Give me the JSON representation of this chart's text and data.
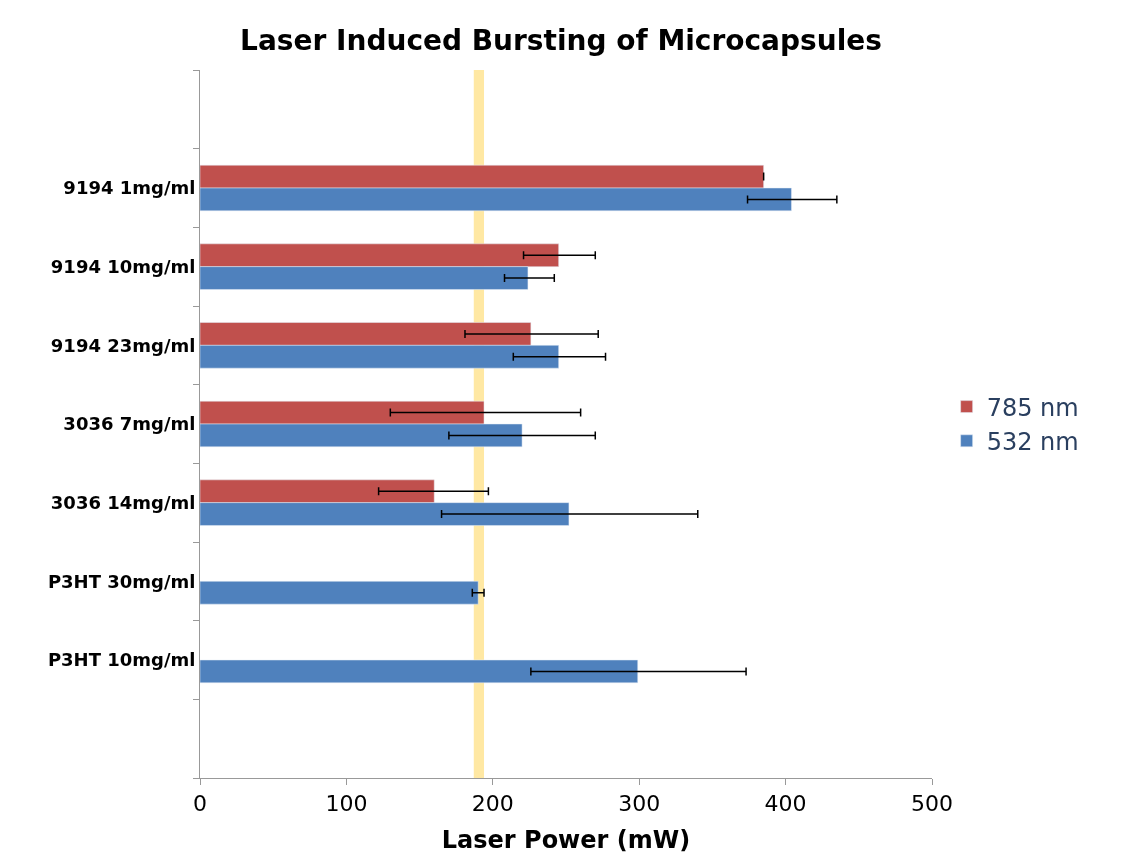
{
  "chart_data": {
    "type": "bar",
    "orientation": "horizontal",
    "title": "Laser Induced Bursting of Microcapsules",
    "xlabel": "Laser Power (mW)",
    "categories": [
      null,
      "9194 1mg/ml",
      "9194 10mg/ml",
      "9194 23mg/ml",
      "3036 7mg/ml",
      "3036 14mg/ml",
      "P3HT 30mg/ml",
      "P3HT 10mg/ml",
      null
    ],
    "series": [
      {
        "name": "785 nm",
        "color": "#c0504d",
        "values": [
          null,
          385,
          245,
          226,
          194,
          160,
          null,
          null,
          null
        ],
        "errors": [
          null,
          null,
          [
            221,
            270
          ],
          [
            181,
            272
          ],
          [
            130,
            260
          ],
          [
            122,
            197
          ],
          null,
          null,
          null
        ]
      },
      {
        "name": "532 nm",
        "color": "#4f81bd",
        "values": [
          null,
          404,
          224,
          245,
          220,
          252,
          190,
          299,
          null
        ],
        "errors": [
          null,
          [
            374,
            435
          ],
          [
            208,
            242
          ],
          [
            214,
            277
          ],
          [
            170,
            270
          ],
          [
            165,
            340
          ],
          [
            186,
            194
          ],
          [
            226,
            373
          ],
          null
        ]
      }
    ],
    "xlim": [
      0,
      500
    ],
    "xticks": [
      0,
      100,
      200,
      300,
      400,
      500
    ],
    "bands": [
      {
        "axis": "x",
        "from": 187,
        "to": 194,
        "color": "#ffd966"
      }
    ],
    "legend": "right"
  }
}
